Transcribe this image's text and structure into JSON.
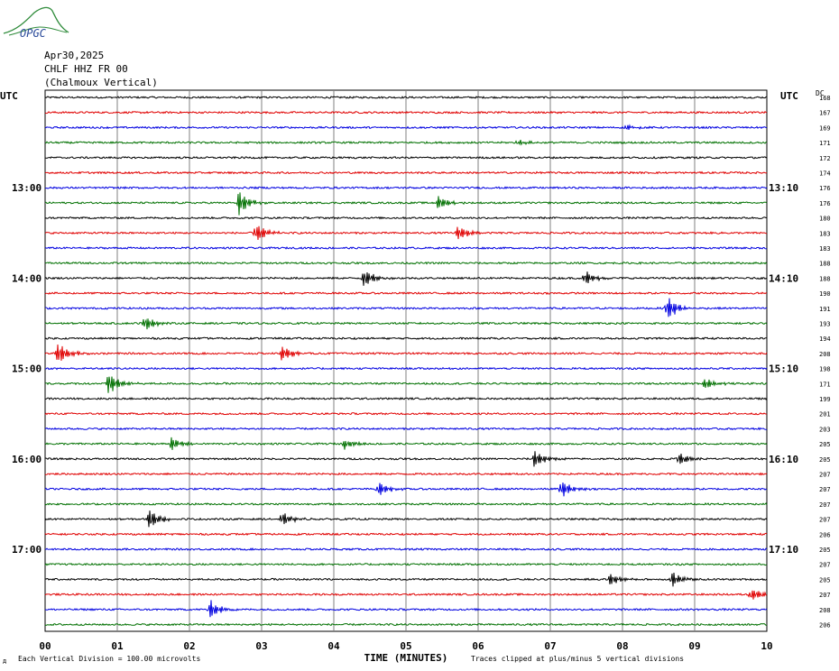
{
  "logo": {
    "text": "OPGC"
  },
  "header": {
    "date": "Apr30,2025",
    "station": "CHLF HHZ FR 00",
    "location": "(Chalmoux Vertical)"
  },
  "axis": {
    "left_timezone": "UTC",
    "right_timezone": "UTC",
    "dc_label": "DC",
    "x_label": "TIME (MINUTES)",
    "scale_note": "Each Vertical Division =  100.00 microvolts",
    "clip_note": "Traces clipped at plus/minus 5 vertical divisions",
    "corner_mark": "д"
  },
  "chart_data": {
    "type": "line",
    "title": "",
    "xlabel": "TIME (MINUTES)",
    "xlim": [
      0,
      10
    ],
    "x_ticks": [
      "00",
      "01",
      "02",
      "03",
      "04",
      "05",
      "06",
      "07",
      "08",
      "09",
      "10"
    ],
    "left_time_labels": [
      {
        "row": 6,
        "label": "13:00"
      },
      {
        "row": 12,
        "label": "14:00"
      },
      {
        "row": 18,
        "label": "15:00"
      },
      {
        "row": 24,
        "label": "16:00"
      },
      {
        "row": 30,
        "label": "17:00"
      }
    ],
    "right_time_labels": [
      {
        "row": 6,
        "label": "13:10"
      },
      {
        "row": 12,
        "label": "14:10"
      },
      {
        "row": 18,
        "label": "15:10"
      },
      {
        "row": 24,
        "label": "16:10"
      },
      {
        "row": 30,
        "label": "17:10"
      }
    ],
    "trace_colors": [
      "#000000",
      "#e00000",
      "#0000e0",
      "#007000"
    ],
    "dc_offsets": [
      "168",
      "167",
      "169",
      "171",
      "172",
      "174",
      "176",
      "176",
      "180",
      "183",
      "183",
      "188",
      "188",
      "190",
      "191",
      "193",
      "194",
      "208",
      "198",
      "171",
      "199",
      "201",
      "203",
      "205",
      "205",
      "207",
      "207",
      "207",
      "207",
      "206",
      "205",
      "207",
      "205",
      "207",
      "208",
      "206"
    ],
    "events": [
      {
        "row": 2,
        "minute": 8.05,
        "amplitude": 0.4
      },
      {
        "row": 3,
        "minute": 6.55,
        "amplitude": 0.4
      },
      {
        "row": 7,
        "minute": 2.68,
        "amplitude": 1.8
      },
      {
        "row": 7,
        "minute": 5.45,
        "amplitude": 1.0
      },
      {
        "row": 9,
        "minute": 2.92,
        "amplitude": 1.4
      },
      {
        "row": 9,
        "minute": 5.72,
        "amplitude": 1.1
      },
      {
        "row": 12,
        "minute": 4.42,
        "amplitude": 1.4
      },
      {
        "row": 12,
        "minute": 7.48,
        "amplitude": 1.1
      },
      {
        "row": 14,
        "minute": 8.62,
        "amplitude": 1.8
      },
      {
        "row": 15,
        "minute": 1.38,
        "amplitude": 1.1
      },
      {
        "row": 17,
        "minute": 0.18,
        "amplitude": 1.6
      },
      {
        "row": 17,
        "minute": 3.28,
        "amplitude": 1.1
      },
      {
        "row": 19,
        "minute": 0.88,
        "amplitude": 1.6
      },
      {
        "row": 19,
        "minute": 9.15,
        "amplitude": 0.9
      },
      {
        "row": 23,
        "minute": 1.75,
        "amplitude": 0.9
      },
      {
        "row": 23,
        "minute": 4.15,
        "amplitude": 0.7
      },
      {
        "row": 24,
        "minute": 6.78,
        "amplitude": 1.3
      },
      {
        "row": 24,
        "minute": 8.78,
        "amplitude": 0.9
      },
      {
        "row": 26,
        "minute": 4.62,
        "amplitude": 1.2
      },
      {
        "row": 26,
        "minute": 7.15,
        "amplitude": 1.3
      },
      {
        "row": 28,
        "minute": 1.45,
        "amplitude": 1.5
      },
      {
        "row": 28,
        "minute": 3.28,
        "amplitude": 1.0
      },
      {
        "row": 32,
        "minute": 7.82,
        "amplitude": 0.9
      },
      {
        "row": 32,
        "minute": 8.68,
        "amplitude": 1.2
      },
      {
        "row": 33,
        "minute": 9.78,
        "amplitude": 0.9
      },
      {
        "row": 34,
        "minute": 2.28,
        "amplitude": 1.4
      }
    ]
  }
}
